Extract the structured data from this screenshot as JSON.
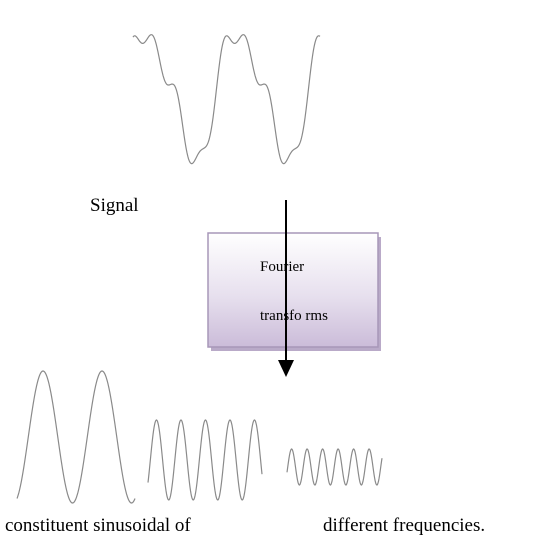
{
  "signal_label": "Signal",
  "transform_box": {
    "line1": "Fourier",
    "line2": "transfo rms"
  },
  "caption": {
    "left": "constituent sinusoidal of",
    "right": "different frequencies."
  }
}
